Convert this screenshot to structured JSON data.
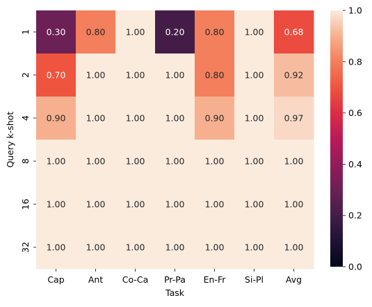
{
  "chart_data": {
    "type": "heatmap",
    "title": "",
    "xlabel": "Task",
    "ylabel": "Query k-shot",
    "x_categories": [
      "Cap",
      "Ant",
      "Co-Ca",
      "Pr-Pa",
      "En-Fr",
      "Si-Pl",
      "Avg"
    ],
    "y_categories": [
      "1",
      "2",
      "4",
      "8",
      "16",
      "32"
    ],
    "values": [
      [
        0.3,
        0.8,
        1.0,
        0.2,
        0.8,
        1.0,
        0.68
      ],
      [
        0.7,
        1.0,
        1.0,
        1.0,
        0.8,
        1.0,
        0.92
      ],
      [
        0.9,
        1.0,
        1.0,
        1.0,
        0.9,
        1.0,
        0.97
      ],
      [
        1.0,
        1.0,
        1.0,
        1.0,
        1.0,
        1.0,
        1.0
      ],
      [
        1.0,
        1.0,
        1.0,
        1.0,
        1.0,
        1.0,
        1.0
      ],
      [
        1.0,
        1.0,
        1.0,
        1.0,
        1.0,
        1.0,
        1.0
      ]
    ],
    "value_labels": [
      [
        "0.30",
        "0.80",
        "1.00",
        "0.20",
        "0.80",
        "1.00",
        "0.68"
      ],
      [
        "0.70",
        "1.00",
        "1.00",
        "1.00",
        "0.80",
        "1.00",
        "0.92"
      ],
      [
        "0.90",
        "1.00",
        "1.00",
        "1.00",
        "0.90",
        "1.00",
        "0.97"
      ],
      [
        "1.00",
        "1.00",
        "1.00",
        "1.00",
        "1.00",
        "1.00",
        "1.00"
      ],
      [
        "1.00",
        "1.00",
        "1.00",
        "1.00",
        "1.00",
        "1.00",
        "1.00"
      ],
      [
        "1.00",
        "1.00",
        "1.00",
        "1.00",
        "1.00",
        "1.00",
        "1.00"
      ]
    ],
    "colorbar": {
      "range": [
        0,
        1
      ],
      "ticks": [
        0.0,
        0.2,
        0.4,
        0.6,
        0.8,
        1.0
      ],
      "tick_labels": [
        "0.0",
        "0.2",
        "0.4",
        "0.6",
        "0.8",
        "1.0"
      ],
      "colormap": "rocket"
    },
    "grid": false,
    "legend": "colorbar-right"
  }
}
